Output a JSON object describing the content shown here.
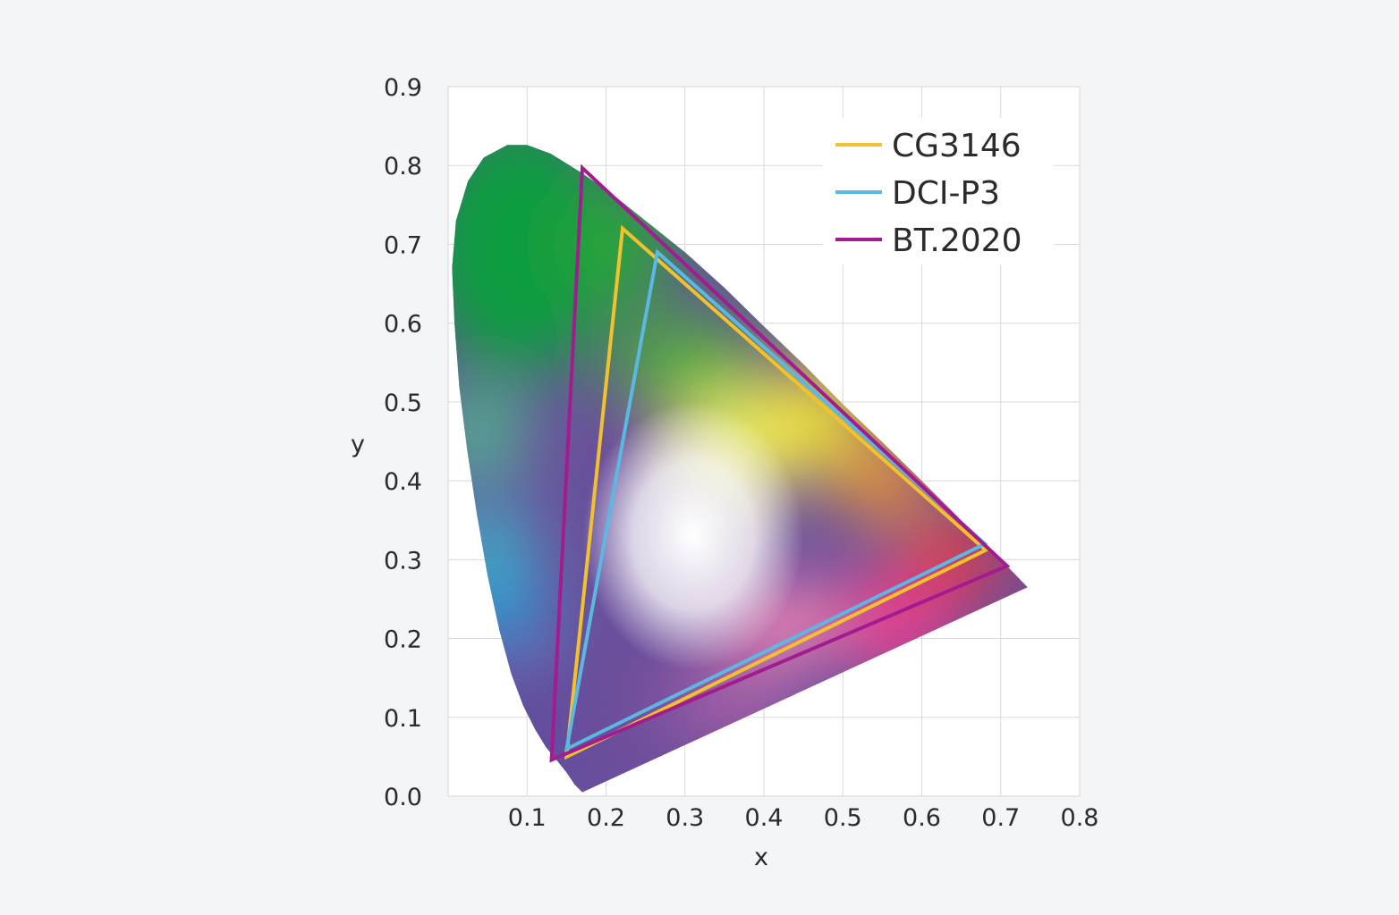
{
  "chart_data": {
    "type": "scatter",
    "title": "",
    "xlabel": "x",
    "ylabel": "y",
    "xlim": [
      0.0,
      0.8
    ],
    "ylim": [
      0.0,
      0.9
    ],
    "x_ticks": [
      "0.1",
      "0.2",
      "0.3",
      "0.4",
      "0.5",
      "0.6",
      "0.7",
      "0.8"
    ],
    "y_ticks": [
      "0.0",
      "0.1",
      "0.2",
      "0.3",
      "0.4",
      "0.5",
      "0.6",
      "0.7",
      "0.8",
      "0.9"
    ],
    "grid": true,
    "legend_position": "top-right",
    "spectral_locus": [
      [
        0.17,
        0.005
      ],
      [
        0.16,
        0.015
      ],
      [
        0.15,
        0.03
      ],
      [
        0.138,
        0.045
      ],
      [
        0.124,
        0.062
      ],
      [
        0.11,
        0.085
      ],
      [
        0.095,
        0.115
      ],
      [
        0.08,
        0.155
      ],
      [
        0.065,
        0.21
      ],
      [
        0.05,
        0.28
      ],
      [
        0.036,
        0.36
      ],
      [
        0.024,
        0.44
      ],
      [
        0.014,
        0.52
      ],
      [
        0.008,
        0.6
      ],
      [
        0.005,
        0.67
      ],
      [
        0.01,
        0.73
      ],
      [
        0.025,
        0.78
      ],
      [
        0.045,
        0.81
      ],
      [
        0.075,
        0.826
      ],
      [
        0.1,
        0.826
      ],
      [
        0.13,
        0.815
      ],
      [
        0.17,
        0.79
      ],
      [
        0.21,
        0.762
      ],
      [
        0.25,
        0.73
      ],
      [
        0.3,
        0.69
      ],
      [
        0.35,
        0.645
      ],
      [
        0.4,
        0.596
      ],
      [
        0.45,
        0.548
      ],
      [
        0.5,
        0.497
      ],
      [
        0.55,
        0.449
      ],
      [
        0.6,
        0.4
      ],
      [
        0.65,
        0.35
      ],
      [
        0.7,
        0.3
      ],
      [
        0.734,
        0.265
      ]
    ],
    "series": [
      {
        "name": "CG3146",
        "color": "#f2c12e",
        "points": [
          [
            0.221,
            0.72
          ],
          [
            0.681,
            0.312
          ],
          [
            0.15,
            0.05
          ]
        ]
      },
      {
        "name": "DCI-P3",
        "color": "#5ab8e2",
        "points": [
          [
            0.265,
            0.69
          ],
          [
            0.68,
            0.32
          ],
          [
            0.15,
            0.06
          ]
        ]
      },
      {
        "name": "BT.2020",
        "color": "#a21c8f",
        "points": [
          [
            0.17,
            0.797
          ],
          [
            0.708,
            0.292
          ],
          [
            0.131,
            0.046
          ]
        ]
      }
    ]
  }
}
